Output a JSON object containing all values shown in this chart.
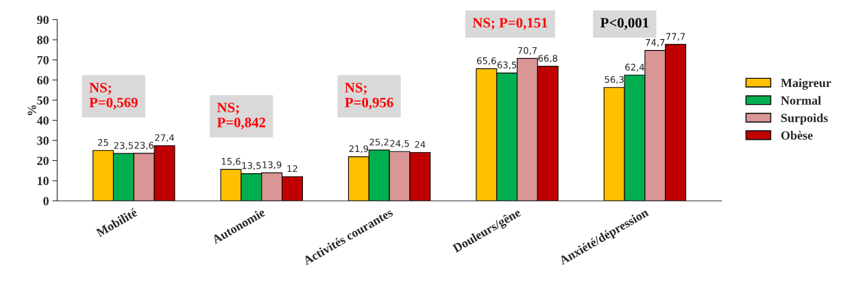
{
  "chart_data": {
    "type": "bar",
    "ylabel": "%",
    "categories": [
      "Mobilité",
      "Autonomie",
      "Activités courantes",
      "Douleurs/gêne",
      "Anxiété/dépression"
    ],
    "series": [
      {
        "name": "Maigreur",
        "color": "#ffc000",
        "values": [
          25,
          15.6,
          21.9,
          65.6,
          56.3
        ],
        "value_labels": [
          "25",
          "15,6",
          "21,9",
          "65,6",
          "56,3"
        ]
      },
      {
        "name": "Normal",
        "color": "#00b050",
        "values": [
          23.5,
          13.5,
          25.2,
          63.5,
          62.4
        ],
        "value_labels": [
          "23,5",
          "13,5",
          "25,2",
          "63,5",
          "62,4"
        ]
      },
      {
        "name": "Surpoids",
        "color": "#d99694",
        "values": [
          23.6,
          13.9,
          24.5,
          70.7,
          74.7
        ],
        "value_labels": [
          "23,6",
          "13,9",
          "24,5",
          "70,7",
          "74,7"
        ]
      },
      {
        "name": "Obèse",
        "color": "#c00000",
        "values": [
          27.4,
          12,
          24,
          66.8,
          77.7
        ],
        "value_labels": [
          "27,4",
          "12",
          "24",
          "66,8",
          "77,7"
        ]
      }
    ],
    "ylim": [
      0,
      90
    ],
    "yticks": [
      0,
      10,
      20,
      30,
      40,
      50,
      60,
      70,
      80,
      90
    ],
    "grid": false,
    "legend": "right",
    "annotations": [
      "NS;\nP=0,569",
      "NS;\nP=0,842",
      "NS;\nP=0,956",
      "NS; P=0,151",
      "P<0,001"
    ]
  }
}
